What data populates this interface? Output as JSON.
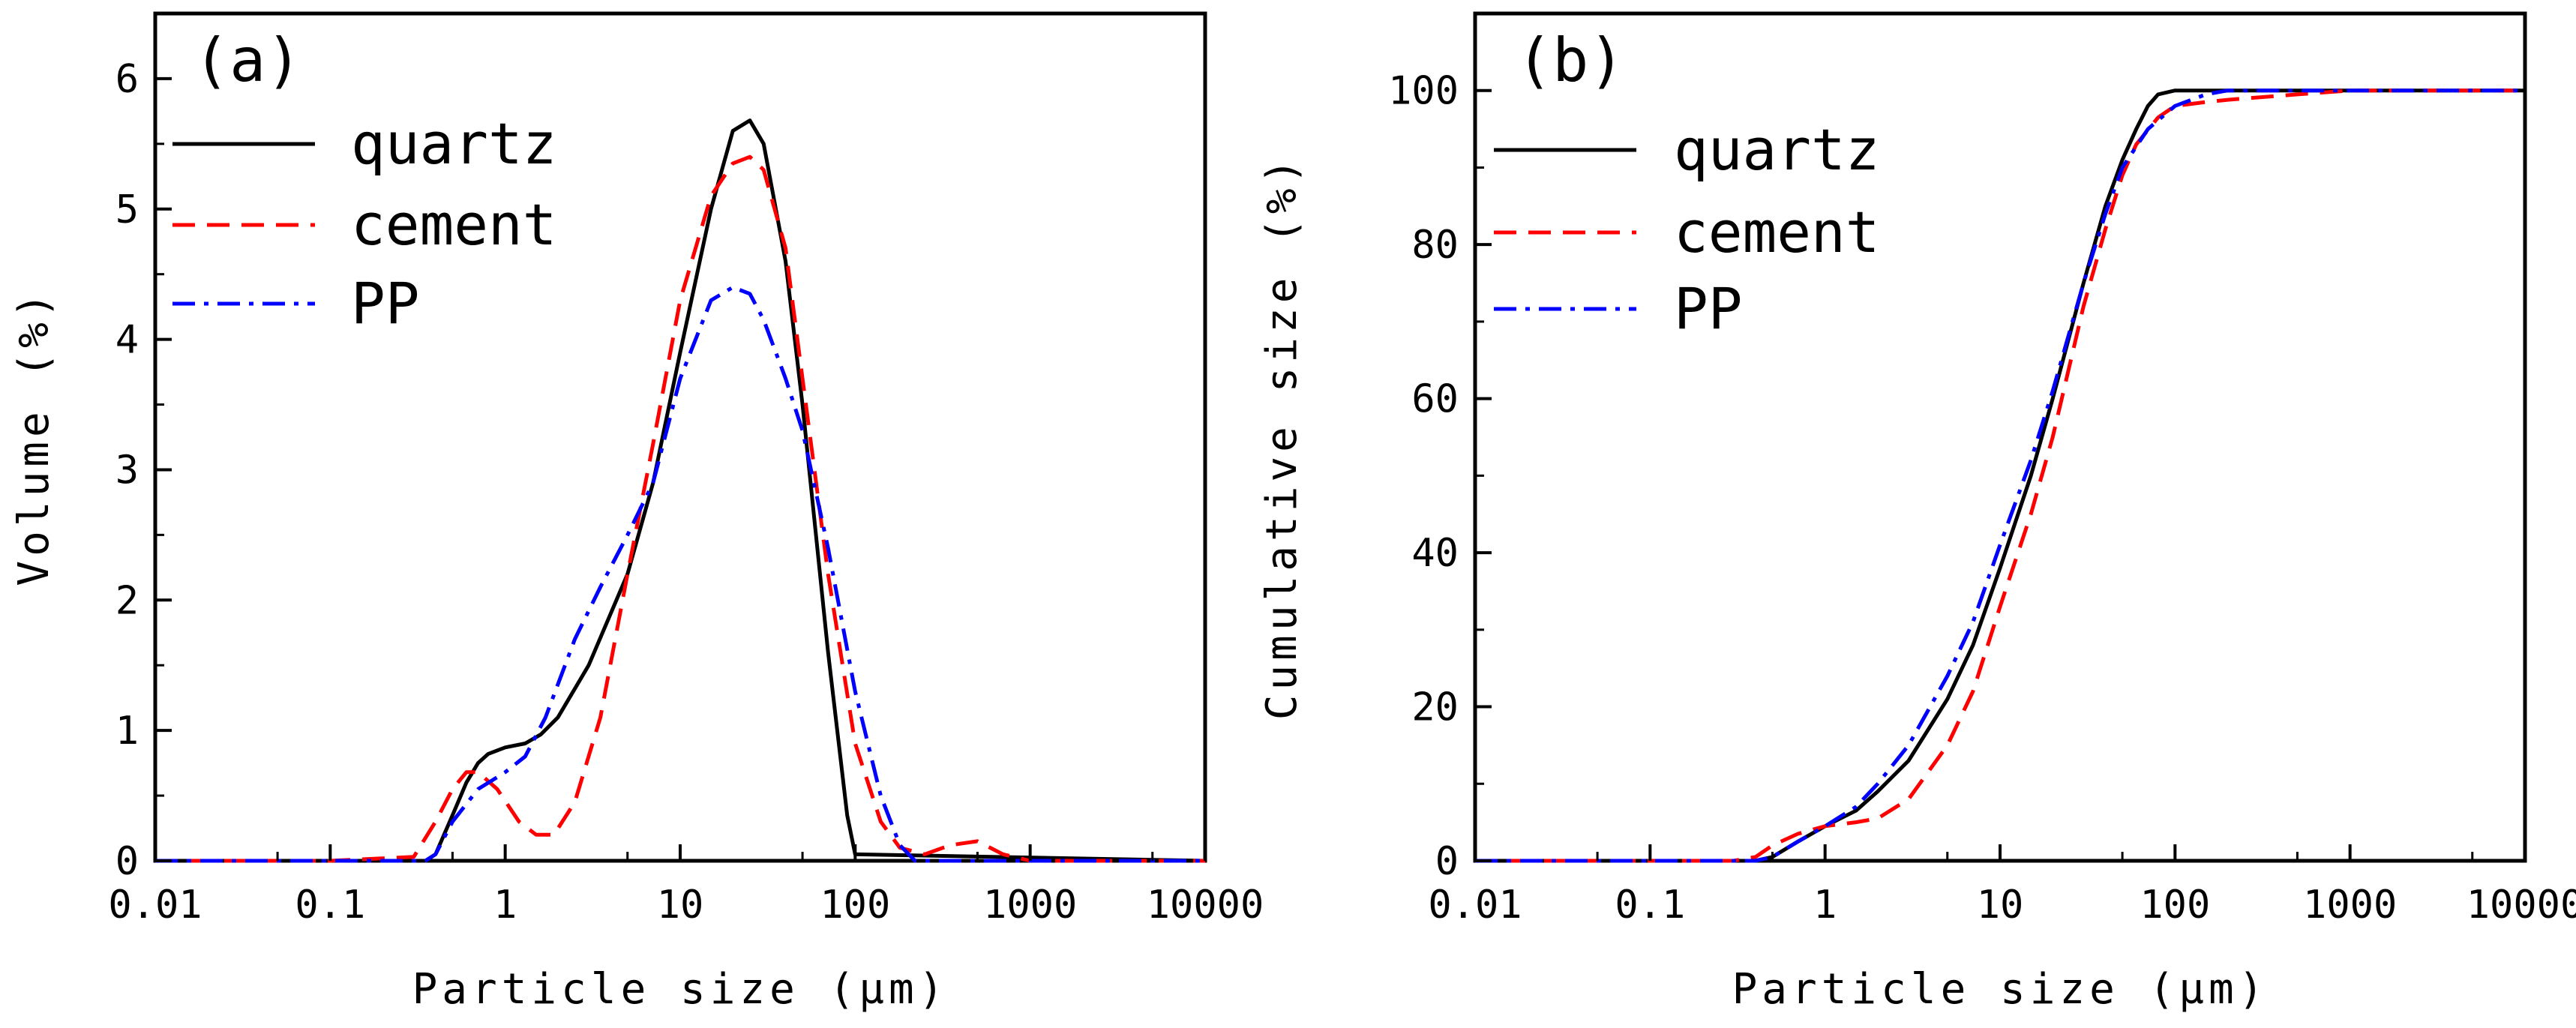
{
  "chart_data": [
    {
      "type": "line",
      "panel_label": "(a)",
      "xlabel": "Particle size (μm)",
      "ylabel": "Volume (%)",
      "xscale": "log",
      "xlim": [
        0.01,
        10000
      ],
      "ylim": [
        0,
        6.5
      ],
      "xticks": [
        0.01,
        0.1,
        1,
        10,
        100,
        1000,
        10000
      ],
      "xtick_labels": [
        "0.01",
        "0.1",
        "1",
        "10",
        "100",
        "1000",
        "10000"
      ],
      "yticks": [
        0,
        1,
        2,
        3,
        4,
        5,
        6
      ],
      "ytick_labels": [
        "0",
        "1",
        "2",
        "3",
        "4",
        "5",
        "6"
      ],
      "legend_position": "top-left",
      "series": [
        {
          "name": "quartz",
          "color": "#000000",
          "dash": "solid",
          "x": [
            0.01,
            0.1,
            0.35,
            0.4,
            0.5,
            0.6,
            0.7,
            0.8,
            1.0,
            1.3,
            1.6,
            2.0,
            3.0,
            5.0,
            7.0,
            10,
            15,
            20,
            25,
            30,
            40,
            50,
            70,
            90,
            100,
            10000
          ],
          "y": [
            0,
            0,
            0,
            0.05,
            0.35,
            0.6,
            0.75,
            0.82,
            0.87,
            0.9,
            0.97,
            1.1,
            1.5,
            2.2,
            2.9,
            3.9,
            5.0,
            5.6,
            5.68,
            5.5,
            4.6,
            3.5,
            1.6,
            0.35,
            0.05,
            0
          ]
        },
        {
          "name": "cement",
          "color": "#ff0000",
          "dash": "dashed",
          "x": [
            0.01,
            0.1,
            0.3,
            0.4,
            0.5,
            0.6,
            0.7,
            0.9,
            1.2,
            1.5,
            1.9,
            2.5,
            3.5,
            5.0,
            7.0,
            10,
            15,
            20,
            25,
            30,
            40,
            50,
            70,
            100,
            140,
            180,
            250,
            350,
            500,
            700,
            1000,
            10000
          ],
          "y": [
            0,
            0,
            0.03,
            0.3,
            0.55,
            0.68,
            0.68,
            0.55,
            0.3,
            0.2,
            0.2,
            0.45,
            1.1,
            2.2,
            3.2,
            4.3,
            5.1,
            5.35,
            5.4,
            5.3,
            4.7,
            3.7,
            2.2,
            0.9,
            0.3,
            0.1,
            0.05,
            0.12,
            0.15,
            0.05,
            0,
            0
          ]
        },
        {
          "name": "PP",
          "color": "#0000ff",
          "dash": "dashdot",
          "x": [
            0.01,
            0.1,
            0.35,
            0.4,
            0.5,
            0.7,
            1.0,
            1.3,
            1.7,
            2.5,
            3.5,
            5.0,
            7.0,
            10,
            15,
            20,
            25,
            30,
            40,
            50,
            70,
            100,
            140,
            180,
            220,
            10000
          ],
          "y": [
            0,
            0,
            0,
            0.05,
            0.3,
            0.55,
            0.68,
            0.8,
            1.1,
            1.7,
            2.1,
            2.5,
            2.9,
            3.7,
            4.3,
            4.4,
            4.35,
            4.15,
            3.7,
            3.3,
            2.4,
            1.3,
            0.5,
            0.12,
            0,
            0
          ]
        }
      ]
    },
    {
      "type": "line",
      "panel_label": "(b)",
      "xlabel": "Particle size (μm)",
      "ylabel": "Cumulative size (%)",
      "xscale": "log",
      "xlim": [
        0.01,
        10000
      ],
      "ylim": [
        0,
        110
      ],
      "xticks": [
        0.01,
        0.1,
        1,
        10,
        100,
        1000,
        10000
      ],
      "xtick_labels": [
        "0.01",
        "0.1",
        "1",
        "10",
        "100",
        "1000",
        "10000"
      ],
      "yticks": [
        0,
        20,
        40,
        60,
        80,
        100
      ],
      "ytick_labels": [
        "0",
        "20",
        "40",
        "60",
        "80",
        "100"
      ],
      "legend_position": "top-left",
      "series": [
        {
          "name": "quartz",
          "color": "#000000",
          "dash": "solid",
          "x": [
            0.01,
            0.1,
            0.4,
            0.5,
            0.7,
            1.0,
            1.5,
            2.0,
            3.0,
            5.0,
            7.0,
            10,
            15,
            20,
            30,
            40,
            50,
            60,
            70,
            80,
            100,
            10000
          ],
          "y": [
            0,
            0,
            0,
            0.5,
            2.5,
            4.5,
            6.5,
            9,
            13,
            21,
            28,
            38,
            50,
            60,
            75,
            85,
            91,
            95,
            98,
            99.5,
            100,
            100
          ]
        },
        {
          "name": "cement",
          "color": "#ff0000",
          "dash": "dashed",
          "x": [
            0.01,
            0.1,
            0.3,
            0.4,
            0.5,
            0.7,
            1.0,
            1.5,
            2.0,
            3.0,
            5.0,
            7.0,
            10,
            15,
            20,
            30,
            40,
            50,
            60,
            80,
            100,
            150,
            200,
            500,
            1000,
            10000
          ],
          "y": [
            0,
            0,
            0,
            0.5,
            2,
            3.5,
            4.5,
            5,
            5.5,
            8,
            15,
            22,
            33,
            45,
            55,
            72,
            82,
            89,
            93,
            96.5,
            98,
            98.5,
            98.8,
            99.5,
            100,
            100
          ]
        },
        {
          "name": "PP",
          "color": "#0000ff",
          "dash": "dashdot",
          "x": [
            0.01,
            0.1,
            0.4,
            0.5,
            0.7,
            1.0,
            1.5,
            2.0,
            3.0,
            5.0,
            7.0,
            10,
            15,
            20,
            30,
            40,
            50,
            70,
            100,
            150,
            200,
            10000
          ],
          "y": [
            0,
            0,
            0,
            0.5,
            2.5,
            4.5,
            7,
            10,
            15,
            24,
            31,
            41,
            52,
            61,
            75,
            84,
            90,
            95,
            98,
            99.5,
            100,
            100
          ]
        }
      ]
    }
  ]
}
